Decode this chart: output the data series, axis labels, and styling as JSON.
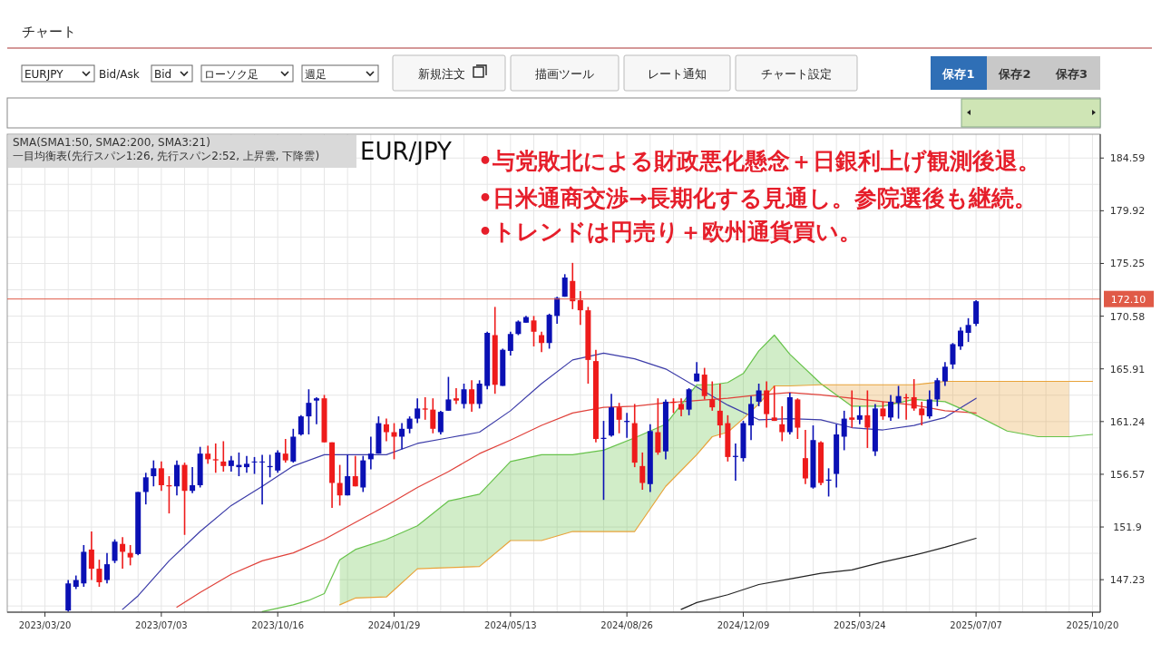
{
  "chart_data": {
    "type": "candlestick",
    "title": "EUR/JPY",
    "annotations": [
      "チャート",
      "EURJPY",
      "Bid/Ask",
      "Bid",
      "ローソク足",
      "週足",
      "新規注文",
      "描画ツール",
      "レート通知",
      "チャート設定",
      "保存1",
      "保存2",
      "保存3",
      "SMA(SMA1:50, SMA2:200, SMA3:21)",
      "一目均衡表(先行スパン1:26, 先行スパン2:52, 上昇雲, 下降雲)",
      "•与党敗北による財政悪化懸念＋日銀利上げ観測後退。",
      "•日米通商交渉→長期化する見通し。参院選後も継続。",
      "•トレンドは円売り＋欧州通貨買い。"
    ],
    "x": [
      "2023-04-10",
      "2023-04-17",
      "2023-04-24",
      "2023-05-01",
      "2023-05-08",
      "2023-05-15",
      "2023-05-22",
      "2023-05-29",
      "2023-06-05",
      "2023-06-12",
      "2023-06-19",
      "2023-06-26",
      "2023-07-03",
      "2023-07-10",
      "2023-07-17",
      "2023-07-24",
      "2023-07-31",
      "2023-08-07",
      "2023-08-14",
      "2023-08-21",
      "2023-08-28",
      "2023-09-04",
      "2023-09-11",
      "2023-09-18",
      "2023-09-25",
      "2023-10-02",
      "2023-10-09",
      "2023-10-16",
      "2023-10-23",
      "2023-10-30",
      "2023-11-06",
      "2023-11-13",
      "2023-11-20",
      "2023-11-27",
      "2023-12-04",
      "2023-12-11",
      "2023-12-18",
      "2023-12-25",
      "2024-01-01",
      "2024-01-08",
      "2024-01-15",
      "2024-01-22",
      "2024-01-29",
      "2024-02-05",
      "2024-02-12",
      "2024-02-19",
      "2024-02-26",
      "2024-03-04",
      "2024-03-11",
      "2024-03-18",
      "2024-03-25",
      "2024-04-01",
      "2024-04-08",
      "2024-04-15",
      "2024-04-22",
      "2024-04-29",
      "2024-05-06",
      "2024-05-13",
      "2024-05-20",
      "2024-05-27",
      "2024-06-03",
      "2024-06-10",
      "2024-06-17",
      "2024-06-24",
      "2024-07-01",
      "2024-07-08",
      "2024-07-15",
      "2024-07-22",
      "2024-07-29",
      "2024-08-05",
      "2024-08-12",
      "2024-08-19",
      "2024-08-26",
      "2024-09-02",
      "2024-09-09",
      "2024-09-16",
      "2024-09-23",
      "2024-09-30",
      "2024-10-07",
      "2024-10-14",
      "2024-10-21",
      "2024-10-28",
      "2024-11-04",
      "2024-11-11",
      "2024-11-18",
      "2024-11-25",
      "2024-12-02",
      "2024-12-09",
      "2024-12-16",
      "2024-12-23",
      "2024-12-30",
      "2025-01-06",
      "2025-01-13",
      "2025-01-20",
      "2025-01-27",
      "2025-02-03",
      "2025-02-10",
      "2025-02-17",
      "2025-02-24",
      "2025-03-03",
      "2025-03-10",
      "2025-03-17",
      "2025-03-24",
      "2025-03-31",
      "2025-04-07",
      "2025-04-14",
      "2025-04-21",
      "2025-04-28",
      "2025-05-05",
      "2025-05-12",
      "2025-05-19",
      "2025-05-26",
      "2025-06-02",
      "2025-06-09",
      "2025-06-16",
      "2025-06-23",
      "2025-06-30",
      "2025-07-07"
    ],
    "ohlc": [
      [
        144.5,
        147.2,
        144.4,
        146.9
      ],
      [
        146.6,
        147.6,
        146.4,
        147.2
      ],
      [
        146.9,
        150.3,
        146.6,
        149.7
      ],
      [
        149.9,
        151.5,
        147.2,
        148.2
      ],
      [
        148.2,
        149.0,
        146.6,
        147.0
      ],
      [
        147.2,
        149.6,
        146.9,
        148.6
      ],
      [
        148.9,
        150.8,
        148.7,
        150.6
      ],
      [
        150.4,
        151.0,
        148.2,
        149.7
      ],
      [
        149.6,
        150.3,
        148.5,
        149.2
      ],
      [
        149.5,
        155.0,
        149.4,
        155.0
      ],
      [
        155.0,
        156.7,
        153.9,
        156.3
      ],
      [
        156.4,
        157.8,
        155.5,
        157.1
      ],
      [
        157.1,
        157.7,
        155.1,
        155.6
      ],
      [
        155.6,
        156.4,
        153.1,
        155.5
      ],
      [
        155.5,
        157.8,
        154.7,
        157.4
      ],
      [
        157.4,
        157.6,
        151.2,
        155.1
      ],
      [
        155.1,
        157.2,
        154.9,
        155.6
      ],
      [
        155.6,
        159.0,
        155.4,
        158.4
      ],
      [
        158.4,
        159.1,
        157.5,
        157.9
      ],
      [
        157.9,
        159.3,
        156.7,
        157.8
      ],
      [
        157.7,
        159.5,
        156.8,
        157.3
      ],
      [
        157.3,
        158.2,
        156.8,
        157.8
      ],
      [
        157.2,
        158.5,
        156.4,
        157.4
      ],
      [
        157.2,
        158.2,
        156.7,
        157.5
      ],
      [
        157.7,
        158.1,
        156.6,
        157.7
      ],
      [
        157.7,
        158.3,
        153.9,
        157.7
      ],
      [
        157.2,
        158.3,
        156.3,
        157.3
      ],
      [
        156.9,
        158.7,
        156.7,
        158.5
      ],
      [
        158.4,
        159.7,
        157.6,
        157.8
      ],
      [
        157.7,
        160.6,
        157.6,
        159.9
      ],
      [
        160.1,
        161.8,
        160.0,
        161.7
      ],
      [
        161.7,
        164.1,
        160.1,
        162.9
      ],
      [
        163.1,
        163.4,
        161.0,
        163.3
      ],
      [
        163.3,
        163.6,
        159.4,
        159.4
      ],
      [
        159.4,
        159.4,
        153.6,
        155.8
      ],
      [
        155.8,
        157.4,
        153.8,
        154.7
      ],
      [
        154.7,
        158.3,
        154.7,
        156.4
      ],
      [
        156.4,
        158.2,
        155.5,
        155.5
      ],
      [
        155.4,
        158.2,
        155.0,
        157.8
      ],
      [
        157.9,
        159.9,
        157.0,
        158.4
      ],
      [
        158.4,
        161.7,
        158.4,
        161.1
      ],
      [
        161.0,
        161.5,
        159.5,
        160.3
      ],
      [
        160.3,
        161.1,
        157.9,
        159.9
      ],
      [
        159.9,
        161.1,
        158.8,
        160.6
      ],
      [
        160.6,
        161.7,
        160.2,
        161.5
      ],
      [
        161.5,
        163.3,
        161.1,
        162.4
      ],
      [
        162.4,
        163.4,
        161.4,
        162.3
      ],
      [
        162.3,
        163.3,
        160.2,
        160.6
      ],
      [
        160.3,
        162.2,
        160.1,
        162.1
      ],
      [
        162.2,
        165.2,
        162.2,
        163.2
      ],
      [
        163.3,
        164.2,
        162.8,
        163.1
      ],
      [
        162.8,
        164.6,
        162.4,
        164.1
      ],
      [
        164.1,
        164.9,
        162.1,
        162.8
      ],
      [
        162.8,
        164.9,
        162.4,
        164.6
      ],
      [
        164.4,
        169.2,
        164.1,
        169.1
      ],
      [
        168.9,
        171.4,
        163.7,
        164.5
      ],
      [
        164.4,
        167.7,
        164.4,
        167.6
      ],
      [
        167.5,
        169.2,
        167.1,
        169.0
      ],
      [
        169.0,
        170.2,
        168.9,
        170.1
      ],
      [
        170.0,
        170.6,
        170.0,
        170.5
      ],
      [
        170.2,
        170.6,
        167.9,
        169.2
      ],
      [
        168.9,
        169.2,
        167.4,
        168.2
      ],
      [
        168.2,
        170.8,
        167.7,
        170.7
      ],
      [
        170.6,
        172.3,
        169.9,
        172.2
      ],
      [
        172.3,
        174.3,
        172.3,
        174.0
      ],
      [
        173.7,
        175.3,
        171.2,
        171.9
      ],
      [
        172.0,
        172.8,
        169.8,
        171.1
      ],
      [
        171.1,
        171.4,
        164.6,
        166.7
      ],
      [
        166.6,
        167.6,
        159.4,
        159.7
      ],
      [
        159.7,
        161.3,
        154.3,
        159.8
      ],
      [
        160.0,
        163.7,
        159.9,
        162.5
      ],
      [
        162.5,
        162.9,
        160.2,
        161.4
      ],
      [
        161.2,
        162.0,
        159.8,
        161.3
      ],
      [
        161.1,
        162.8,
        157.2,
        157.6
      ],
      [
        157.3,
        158.5,
        155.2,
        155.8
      ],
      [
        155.7,
        161.0,
        155.0,
        160.4
      ],
      [
        160.3,
        163.3,
        158.3,
        158.5
      ],
      [
        158.6,
        163.2,
        157.9,
        163.0
      ],
      [
        163.0,
        163.3,
        162.0,
        162.9
      ],
      [
        162.8,
        163.3,
        161.7,
        162.3
      ],
      [
        162.3,
        164.2,
        161.8,
        164.1
      ],
      [
        164.8,
        166.5,
        164.8,
        165.5
      ],
      [
        165.4,
        166.0,
        163.2,
        163.5
      ],
      [
        163.2,
        164.8,
        162.2,
        162.5
      ],
      [
        162.2,
        164.6,
        159.8,
        160.9
      ],
      [
        161.1,
        161.8,
        157.7,
        158.1
      ],
      [
        158.1,
        159.3,
        156.0,
        158.2
      ],
      [
        158.0,
        161.3,
        157.7,
        161.1
      ],
      [
        160.9,
        163.5,
        159.6,
        162.8
      ],
      [
        163.0,
        164.6,
        162.6,
        164.0
      ],
      [
        164.0,
        164.8,
        160.7,
        161.9
      ],
      [
        161.6,
        164.4,
        161.3,
        161.3
      ],
      [
        161.0,
        162.6,
        159.5,
        160.3
      ],
      [
        160.3,
        163.8,
        160.1,
        163.4
      ],
      [
        163.2,
        163.3,
        159.7,
        160.7
      ],
      [
        158.0,
        160.5,
        155.7,
        156.2
      ],
      [
        155.4,
        160.9,
        155.3,
        159.6
      ],
      [
        159.4,
        159.5,
        155.6,
        155.8
      ],
      [
        156.0,
        157.1,
        154.6,
        156.1
      ],
      [
        156.6,
        161.0,
        155.4,
        160.1
      ],
      [
        159.9,
        162.2,
        158.7,
        161.5
      ],
      [
        161.6,
        164.0,
        160.7,
        161.4
      ],
      [
        161.4,
        162.6,
        161.0,
        161.8
      ],
      [
        161.8,
        164.0,
        158.9,
        160.7
      ],
      [
        158.6,
        162.8,
        158.2,
        162.4
      ],
      [
        162.4,
        163.0,
        161.4,
        161.7
      ],
      [
        161.6,
        163.6,
        161.3,
        163.0
      ],
      [
        162.9,
        164.4,
        161.5,
        163.5
      ],
      [
        163.4,
        163.7,
        161.4,
        163.3
      ],
      [
        163.4,
        165.0,
        162.2,
        162.4
      ],
      [
        162.4,
        163.0,
        160.9,
        161.8
      ],
      [
        161.7,
        164.0,
        161.5,
        163.2
      ],
      [
        163.2,
        165.1,
        162.6,
        164.9
      ],
      [
        164.8,
        166.5,
        164.4,
        166.1
      ],
      [
        166.3,
        168.2,
        165.9,
        168.1
      ],
      [
        167.9,
        169.6,
        167.6,
        169.3
      ],
      [
        169.1,
        170.4,
        168.3,
        169.8
      ],
      [
        169.9,
        172.0,
        169.7,
        171.9
      ]
    ],
    "series": [
      {
        "type": "line",
        "color": "#3b3ba8",
        "x": [
          "2023-05-29",
          "2023-06-12",
          "2023-07-10",
          "2023-08-07",
          "2023-09-04",
          "2023-10-02",
          "2023-10-30",
          "2023-11-27",
          "2023-12-25",
          "2024-01-22",
          "2024-02-19",
          "2024-03-18",
          "2024-04-15",
          "2024-05-13",
          "2024-06-10",
          "2024-07-08",
          "2024-08-05",
          "2024-09-02",
          "2024-09-30",
          "2024-10-28",
          "2024-11-25",
          "2024-12-23",
          "2025-01-20",
          "2025-02-17",
          "2025-03-17",
          "2025-04-14",
          "2025-05-12",
          "2025-06-09",
          "2025-07-07"
        ],
        "values": [
          144.6,
          145.8,
          148.9,
          151.5,
          153.8,
          155.5,
          157.3,
          158.3,
          158.3,
          158.3,
          159.3,
          159.8,
          160.3,
          162.2,
          164.6,
          166.7,
          167.3,
          166.8,
          165.9,
          164.3,
          162.7,
          161.4,
          161.5,
          161.4,
          160.7,
          160.5,
          160.9,
          161.6,
          163.3
        ]
      },
      {
        "type": "line",
        "color": "#e0413a",
        "x": [
          "2023-07-17",
          "2023-08-07",
          "2023-09-04",
          "2023-10-02",
          "2023-10-30",
          "2023-11-27",
          "2023-12-25",
          "2024-01-22",
          "2024-02-19",
          "2024-03-18",
          "2024-04-15",
          "2024-05-13",
          "2024-06-10",
          "2024-07-08",
          "2024-08-05",
          "2024-09-02",
          "2024-09-30",
          "2024-10-28",
          "2024-11-25",
          "2024-12-23",
          "2025-01-20",
          "2025-02-17",
          "2025-03-17",
          "2025-04-14",
          "2025-05-12",
          "2025-06-09",
          "2025-07-07"
        ],
        "values": [
          144.8,
          146.1,
          147.7,
          148.9,
          149.6,
          150.8,
          152.3,
          153.8,
          155.4,
          156.8,
          158.4,
          159.6,
          160.9,
          162.0,
          162.5,
          162.6,
          162.9,
          163.1,
          163.3,
          163.6,
          163.8,
          163.6,
          163.3,
          163.0,
          162.7,
          162.2,
          162.0
        ]
      },
      {
        "type": "line",
        "color": "#222222",
        "x": [
          "2024-10-14",
          "2024-10-28",
          "2024-11-25",
          "2024-12-23",
          "2025-01-20",
          "2025-02-17",
          "2025-03-17",
          "2025-04-14",
          "2025-05-12",
          "2025-06-09",
          "2025-07-07"
        ],
        "values": [
          144.6,
          145.2,
          145.9,
          146.8,
          147.3,
          147.8,
          148.1,
          148.8,
          149.4,
          150.1,
          150.9
        ]
      },
      {
        "type": "line",
        "color": "#66c24a",
        "x": [
          "2023-10-02",
          "2023-10-16",
          "2023-10-30",
          "2023-11-13",
          "2023-11-27",
          "2023-12-11",
          "2023-12-25",
          "2024-01-22",
          "2024-02-19",
          "2024-03-18",
          "2024-04-15",
          "2024-05-13",
          "2024-06-10",
          "2024-07-08",
          "2024-08-05",
          "2024-09-02",
          "2024-09-30",
          "2024-10-28",
          "2024-11-11",
          "2024-11-25",
          "2024-12-09",
          "2024-12-23",
          "2025-01-06",
          "2025-01-20",
          "2025-02-17",
          "2025-03-17",
          "2025-04-14",
          "2025-05-12",
          "2025-06-09",
          "2025-07-07",
          "2025-08-04",
          "2025-09-01",
          "2025-09-29",
          "2025-10-20"
        ],
        "values": [
          144.4,
          144.7,
          145.0,
          145.4,
          146.0,
          149.0,
          149.9,
          150.8,
          152.0,
          154.2,
          154.8,
          157.7,
          158.3,
          158.3,
          158.7,
          159.8,
          161.0,
          164.5,
          164.5,
          164.7,
          165.5,
          167.5,
          168.9,
          167.2,
          164.6,
          162.6,
          162.6,
          163.2,
          163.0,
          161.8,
          160.4,
          159.9,
          159.9,
          160.1
        ],
        "lower": [
          null,
          null,
          null,
          null,
          null,
          145.0,
          145.6,
          145.7,
          148.2,
          148.3,
          148.4,
          150.7,
          150.7,
          151.5,
          151.5,
          151.5,
          155.5,
          158.3,
          159.9,
          160.3,
          161.5,
          162.8,
          164.4,
          164.4,
          164.5,
          null,
          null,
          null,
          null,
          null,
          null,
          null,
          null,
          null
        ],
        "upper": [
          null,
          null,
          null,
          null,
          null,
          149.0,
          149.9,
          150.8,
          152.0,
          154.2,
          154.8,
          157.7,
          158.3,
          158.3,
          158.7,
          159.8,
          161.0,
          164.5,
          164.5,
          164.7,
          165.5,
          167.5,
          168.9,
          167.2,
          164.6,
          null,
          null,
          null,
          null,
          null,
          null,
          null,
          null,
          null
        ]
      },
      {
        "type": "line",
        "color": "#e8a33a",
        "x": [
          "2023-12-11",
          "2023-12-25",
          "2024-01-22",
          "2024-02-19",
          "2024-03-18",
          "2024-04-15",
          "2024-05-13",
          "2024-06-10",
          "2024-07-08",
          "2024-08-05",
          "2024-09-02",
          "2024-09-30",
          "2024-10-28",
          "2024-11-11",
          "2024-11-25",
          "2024-12-09",
          "2024-12-23",
          "2025-01-06",
          "2025-01-20",
          "2025-02-17",
          "2025-03-17",
          "2025-04-14",
          "2025-05-12",
          "2025-06-09",
          "2025-07-07",
          "2025-08-04",
          "2025-09-01",
          "2025-09-29",
          "2025-10-20"
        ],
        "values": [
          145.0,
          145.6,
          145.7,
          148.2,
          148.3,
          148.4,
          150.7,
          150.7,
          151.5,
          151.5,
          151.5,
          155.5,
          158.3,
          159.9,
          160.3,
          161.5,
          162.8,
          164.4,
          164.4,
          164.5,
          164.5,
          164.5,
          164.5,
          164.8,
          164.8,
          164.8,
          164.8,
          164.8,
          164.8
        ],
        "lower": [
          null,
          null,
          null,
          null,
          null,
          null,
          null,
          null,
          null,
          null,
          null,
          null,
          null,
          null,
          null,
          null,
          null,
          null,
          null,
          164.5,
          162.6,
          162.6,
          163.2,
          163.0,
          161.8,
          160.4,
          159.9,
          159.9,
          null
        ],
        "upper": [
          null,
          null,
          null,
          null,
          null,
          null,
          null,
          null,
          null,
          null,
          null,
          null,
          null,
          null,
          null,
          null,
          null,
          null,
          null,
          164.5,
          164.5,
          164.5,
          164.5,
          164.8,
          164.8,
          164.8,
          164.8,
          164.8,
          null
        ]
      }
    ],
    "ylim": [
      144.35,
      186.7
    ],
    "yticks": [
      {
        "value": 144.9,
        "label": null
      },
      147.23,
      {
        "value": 149.57,
        "label": null
      },
      151.9,
      {
        "value": 154.24,
        "label": null
      },
      156.57,
      {
        "value": 158.91,
        "label": null
      },
      161.24,
      {
        "value": 163.58,
        "label": null
      },
      165.91,
      {
        "value": 168.25,
        "label": null
      },
      170.58,
      {
        "value": 172.92,
        "label": null
      },
      175.25,
      {
        "value": 177.59,
        "label": null
      },
      179.92,
      {
        "value": 182.26,
        "label": null
      },
      184.59
    ],
    "xlim": [
      "2023-02-14",
      "2025-10-27"
    ],
    "xticks": [
      {
        "value": "2023-02-27",
        "label": null
      },
      {
        "value": "2023-03-20",
        "label": "2023/03/20"
      },
      {
        "value": "2023-04-10",
        "label": null
      },
      {
        "value": "2023-05-01",
        "label": null
      },
      {
        "value": "2023-05-22",
        "label": null
      },
      {
        "value": "2023-06-12",
        "label": null
      },
      {
        "value": "2023-07-03",
        "label": "2023/07/03"
      },
      {
        "value": "2023-07-24",
        "label": null
      },
      {
        "value": "2023-08-14",
        "label": null
      },
      {
        "value": "2023-09-04",
        "label": null
      },
      {
        "value": "2023-09-25",
        "label": null
      },
      {
        "value": "2023-10-16",
        "label": "2023/10/16"
      },
      {
        "value": "2023-11-06",
        "label": null
      },
      {
        "value": "2023-11-27",
        "label": null
      },
      {
        "value": "2023-12-18",
        "label": null
      },
      {
        "value": "2024-01-08",
        "label": null
      },
      {
        "value": "2024-01-29",
        "label": "2024/01/29"
      },
      {
        "value": "2024-02-19",
        "label": null
      },
      {
        "value": "2024-03-11",
        "label": null
      },
      {
        "value": "2024-04-01",
        "label": null
      },
      {
        "value": "2024-04-22",
        "label": null
      },
      {
        "value": "2024-05-13",
        "label": "2024/05/13"
      },
      {
        "value": "2024-06-03",
        "label": null
      },
      {
        "value": "2024-06-24",
        "label": null
      },
      {
        "value": "2024-07-15",
        "label": null
      },
      {
        "value": "2024-08-05",
        "label": null
      },
      {
        "value": "2024-08-26",
        "label": "2024/08/26"
      },
      {
        "value": "2024-09-16",
        "label": null
      },
      {
        "value": "2024-10-07",
        "label": null
      },
      {
        "value": "2024-10-28",
        "label": null
      },
      {
        "value": "2024-11-18",
        "label": null
      },
      {
        "value": "2024-12-09",
        "label": "2024/12/09"
      },
      {
        "value": "2024-12-30",
        "label": null
      },
      {
        "value": "2025-01-20",
        "label": null
      },
      {
        "value": "2025-02-10",
        "label": null
      },
      {
        "value": "2025-03-03",
        "label": null
      },
      {
        "value": "2025-03-24",
        "label": "2025/03/24"
      },
      {
        "value": "2025-04-14",
        "label": null
      },
      {
        "value": "2025-05-05",
        "label": null
      },
      {
        "value": "2025-05-26",
        "label": null
      },
      {
        "value": "2025-06-16",
        "label": null
      },
      {
        "value": "2025-07-07",
        "label": "2025/07/07"
      },
      {
        "value": "2025-07-28",
        "label": null
      },
      {
        "value": "2025-08-18",
        "label": null
      },
      {
        "value": "2025-09-08",
        "label": null
      },
      {
        "value": "2025-09-29",
        "label": null
      },
      {
        "value": "2025-10-20",
        "label": "2025/10/20"
      }
    ],
    "ref_lines": [
      {
        "axis": "y",
        "value": 172.1,
        "label": "172.10",
        "color": "#e05a47"
      }
    ],
    "grid": true
  }
}
